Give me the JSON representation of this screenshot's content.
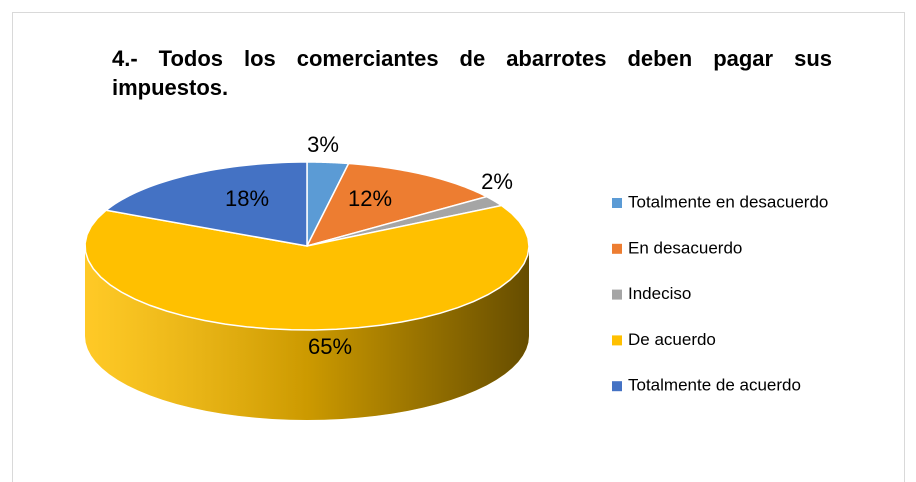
{
  "chart_data": {
    "type": "pie",
    "title": "4.- Todos los comerciantes de abarrotes deben pagar sus impuestos.",
    "categories": [
      "Totalmente en desacuerdo",
      "En desacuerdo",
      "Indeciso",
      "De acuerdo",
      "Totalmente de acuerdo"
    ],
    "values": [
      3,
      12,
      2,
      65,
      18
    ],
    "value_labels": [
      "3%",
      "12%",
      "2%",
      "65%",
      "18%"
    ],
    "colors": [
      "#5b9bd5",
      "#ed7d31",
      "#a5a5a5",
      "#ffc000",
      "#4472c4"
    ],
    "legend": "right"
  }
}
